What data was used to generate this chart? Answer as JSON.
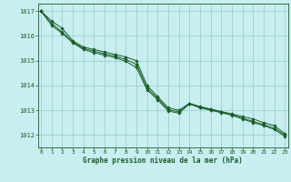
{
  "title": "Graphe pression niveau de la mer (hPa)",
  "bg_color": "#c8eef0",
  "grid_color": "#9ecfcf",
  "line_color": "#1a5c28",
  "marker_color": "#1a5c28",
  "ylim": [
    1011.5,
    1017.3
  ],
  "xlim": [
    -0.3,
    23.3
  ],
  "yticks": [
    1012,
    1013,
    1014,
    1015,
    1016,
    1017
  ],
  "xticks": [
    0,
    1,
    2,
    3,
    4,
    5,
    6,
    7,
    8,
    9,
    10,
    11,
    12,
    13,
    14,
    15,
    16,
    17,
    18,
    19,
    20,
    21,
    22,
    23
  ],
  "series": [
    [
      1017.0,
      1016.6,
      1016.3,
      1015.8,
      1015.55,
      1015.45,
      1015.35,
      1015.25,
      1015.15,
      1015.0,
      1014.0,
      1013.55,
      1013.1,
      1013.0,
      1013.28,
      1013.15,
      1013.05,
      1012.95,
      1012.85,
      1012.75,
      1012.65,
      1012.5,
      1012.38,
      1012.05
    ],
    [
      1017.0,
      1016.5,
      1016.15,
      1015.75,
      1015.5,
      1015.38,
      1015.28,
      1015.18,
      1015.05,
      1014.85,
      1013.9,
      1013.48,
      1013.03,
      1012.93,
      1013.27,
      1013.12,
      1013.02,
      1012.92,
      1012.82,
      1012.68,
      1012.55,
      1012.42,
      1012.28,
      1012.0
    ],
    [
      1017.0,
      1016.42,
      1016.1,
      1015.72,
      1015.45,
      1015.32,
      1015.22,
      1015.12,
      1014.97,
      1014.72,
      1013.82,
      1013.42,
      1012.97,
      1012.88,
      1013.25,
      1013.1,
      1013.0,
      1012.9,
      1012.8,
      1012.65,
      1012.5,
      1012.38,
      1012.22,
      1011.95
    ]
  ]
}
